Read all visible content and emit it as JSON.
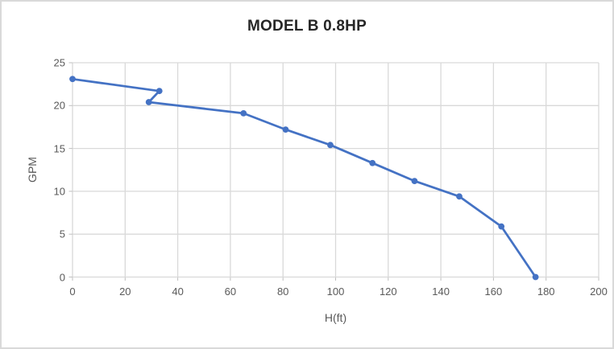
{
  "window": {
    "background": "#ffffff",
    "border_color": "#d9d9d9"
  },
  "chart_data": {
    "type": "line",
    "title": "MODEL B 0.8HP",
    "xlabel": "H(ft)",
    "ylabel": "GPM",
    "xlim": [
      0,
      200
    ],
    "ylim": [
      0,
      25
    ],
    "xticks": [
      0,
      20,
      40,
      60,
      80,
      100,
      120,
      140,
      160,
      180,
      200
    ],
    "yticks": [
      0,
      5,
      10,
      15,
      20,
      25
    ],
    "grid": true,
    "legend": false,
    "series": [
      {
        "points": [
          [
            0,
            23.1
          ],
          [
            33,
            21.7
          ],
          [
            29,
            20.4
          ],
          [
            65,
            19.1
          ],
          [
            81,
            17.2
          ],
          [
            98,
            15.4
          ],
          [
            114,
            13.3
          ],
          [
            130,
            11.2
          ],
          [
            147,
            9.4
          ],
          [
            163,
            5.9
          ],
          [
            176,
            0
          ]
        ]
      }
    ],
    "colors": {
      "line": "#4472C4",
      "marker": "#4472C4",
      "grid": "#D9D9D9",
      "tick": "#BFBFBF",
      "axis_text": "#595959",
      "title_text": "#262626"
    }
  }
}
